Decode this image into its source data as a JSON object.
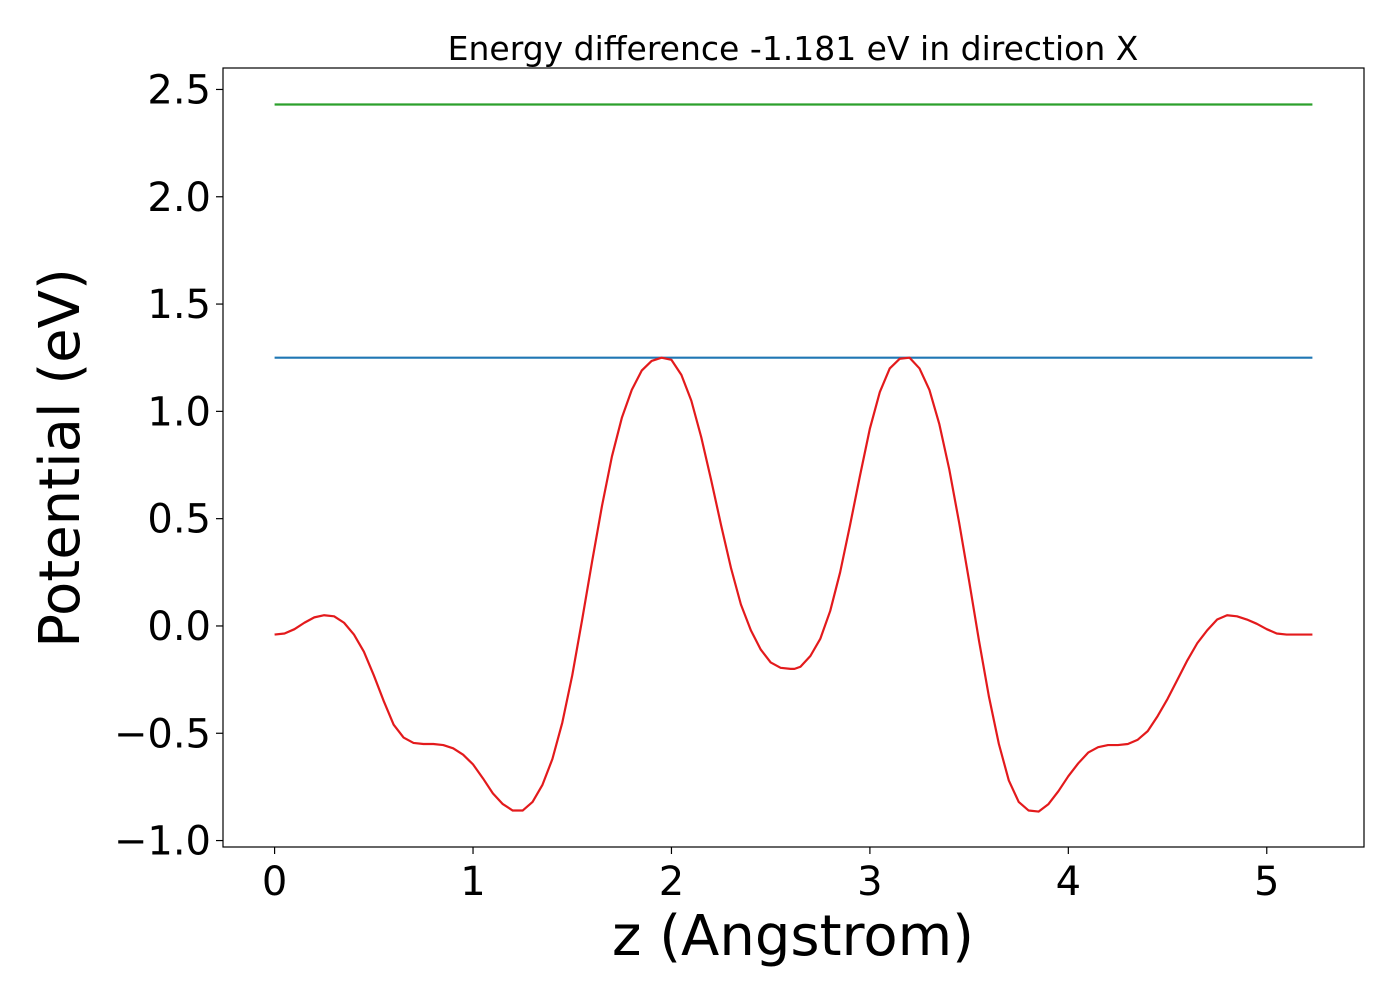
{
  "chart_data": {
    "type": "line",
    "title": "Energy difference -1.181 eV in direction X",
    "xlabel": "z (Angstrom)",
    "ylabel": "Potential (eV)",
    "xlim": [
      -0.26,
      5.49
    ],
    "ylim": [
      -1.03,
      2.6
    ],
    "xticks": [
      0,
      1,
      2,
      3,
      4,
      5
    ],
    "yticks": [
      -1.0,
      -0.5,
      0.0,
      0.5,
      1.0,
      1.5,
      2.0,
      2.5
    ],
    "xtick_labels": [
      "0",
      "1",
      "2",
      "3",
      "4",
      "5"
    ],
    "ytick_labels": [
      "−1.0",
      "−0.5",
      "0.0",
      "0.5",
      "1.0",
      "1.5",
      "2.0",
      "2.5"
    ],
    "grid": false,
    "legend": false,
    "series": [
      {
        "color": "#2ca02c",
        "x": [
          0,
          5.23
        ],
        "y": [
          2.43,
          2.43
        ]
      },
      {
        "color": "#1f77b4",
        "x": [
          0,
          5.23
        ],
        "y": [
          1.25,
          1.25
        ]
      },
      {
        "color": "#e31a1c",
        "x": [
          0.0,
          0.05,
          0.1,
          0.15,
          0.2,
          0.25,
          0.3,
          0.35,
          0.4,
          0.45,
          0.5,
          0.55,
          0.6,
          0.65,
          0.7,
          0.75,
          0.8,
          0.85,
          0.9,
          0.95,
          1.0,
          1.05,
          1.1,
          1.15,
          1.2,
          1.25,
          1.3,
          1.35,
          1.4,
          1.45,
          1.5,
          1.55,
          1.6,
          1.65,
          1.7,
          1.75,
          1.8,
          1.85,
          1.9,
          1.95,
          2.0,
          2.05,
          2.1,
          2.15,
          2.2,
          2.25,
          2.3,
          2.35,
          2.4,
          2.45,
          2.5,
          2.55,
          2.6,
          2.62,
          2.65,
          2.7,
          2.75,
          2.8,
          2.85,
          2.9,
          2.95,
          3.0,
          3.05,
          3.1,
          3.15,
          3.2,
          3.25,
          3.3,
          3.35,
          3.4,
          3.45,
          3.5,
          3.55,
          3.6,
          3.65,
          3.7,
          3.75,
          3.8,
          3.85,
          3.9,
          3.95,
          4.0,
          4.05,
          4.1,
          4.15,
          4.2,
          4.25,
          4.3,
          4.35,
          4.4,
          4.45,
          4.5,
          4.55,
          4.6,
          4.65,
          4.7,
          4.75,
          4.8,
          4.85,
          4.9,
          4.95,
          5.0,
          5.05,
          5.1,
          5.15,
          5.23
        ],
        "y": [
          -0.04,
          -0.035,
          -0.015,
          0.015,
          0.04,
          0.05,
          0.045,
          0.015,
          -0.04,
          -0.12,
          -0.23,
          -0.35,
          -0.46,
          -0.52,
          -0.545,
          -0.55,
          -0.55,
          -0.555,
          -0.57,
          -0.6,
          -0.645,
          -0.71,
          -0.78,
          -0.83,
          -0.86,
          -0.86,
          -0.82,
          -0.74,
          -0.62,
          -0.45,
          -0.23,
          0.03,
          0.3,
          0.56,
          0.79,
          0.97,
          1.1,
          1.19,
          1.235,
          1.25,
          1.24,
          1.17,
          1.05,
          0.88,
          0.68,
          0.47,
          0.27,
          0.1,
          -0.02,
          -0.11,
          -0.17,
          -0.195,
          -0.2,
          -0.2,
          -0.19,
          -0.14,
          -0.06,
          0.07,
          0.25,
          0.47,
          0.7,
          0.92,
          1.09,
          1.2,
          1.245,
          1.25,
          1.2,
          1.1,
          0.94,
          0.73,
          0.48,
          0.21,
          -0.07,
          -0.33,
          -0.55,
          -0.72,
          -0.82,
          -0.86,
          -0.865,
          -0.83,
          -0.77,
          -0.7,
          -0.64,
          -0.59,
          -0.565,
          -0.555,
          -0.555,
          -0.55,
          -0.53,
          -0.49,
          -0.42,
          -0.34,
          -0.25,
          -0.16,
          -0.08,
          -0.02,
          0.03,
          0.05,
          0.045,
          0.03,
          0.01,
          -0.015,
          -0.035,
          -0.04,
          -0.04,
          -0.04
        ]
      }
    ]
  }
}
